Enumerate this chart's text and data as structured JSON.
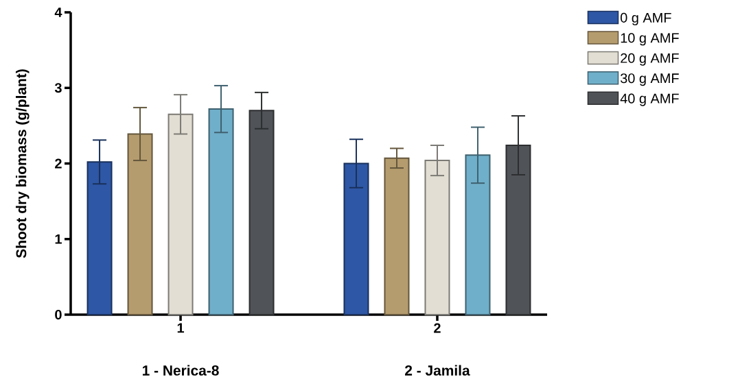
{
  "chart_data": {
    "type": "bar",
    "ylabel": "Shoot dry biomass (g/plant)",
    "categories": [
      "1",
      "2"
    ],
    "series": [
      {
        "name": "0 g AMF",
        "color": "#2e57a5",
        "values": [
          2.02,
          2.0
        ],
        "errors": [
          0.29,
          0.32
        ]
      },
      {
        "name": "10 g AMF",
        "color": "#b59c6e",
        "values": [
          2.39,
          2.07
        ],
        "errors": [
          0.35,
          0.13
        ]
      },
      {
        "name": "20 g AMF",
        "color": "#e2ded3",
        "values": [
          2.65,
          2.04
        ],
        "errors": [
          0.26,
          0.2
        ]
      },
      {
        "name": "30 g AMF",
        "color": "#70afc9",
        "values": [
          2.72,
          2.11
        ],
        "errors": [
          0.31,
          0.37
        ]
      },
      {
        "name": "40 g AMF",
        "color": "#505357",
        "values": [
          2.7,
          2.24
        ],
        "errors": [
          0.24,
          0.39
        ]
      }
    ],
    "ylim": [
      0,
      4
    ],
    "yticks": [
      0,
      1,
      2,
      3,
      4
    ],
    "grid": false,
    "legend": "top right",
    "annotations": [
      "1 - Nerica-8",
      "2 - Jamila"
    ]
  }
}
